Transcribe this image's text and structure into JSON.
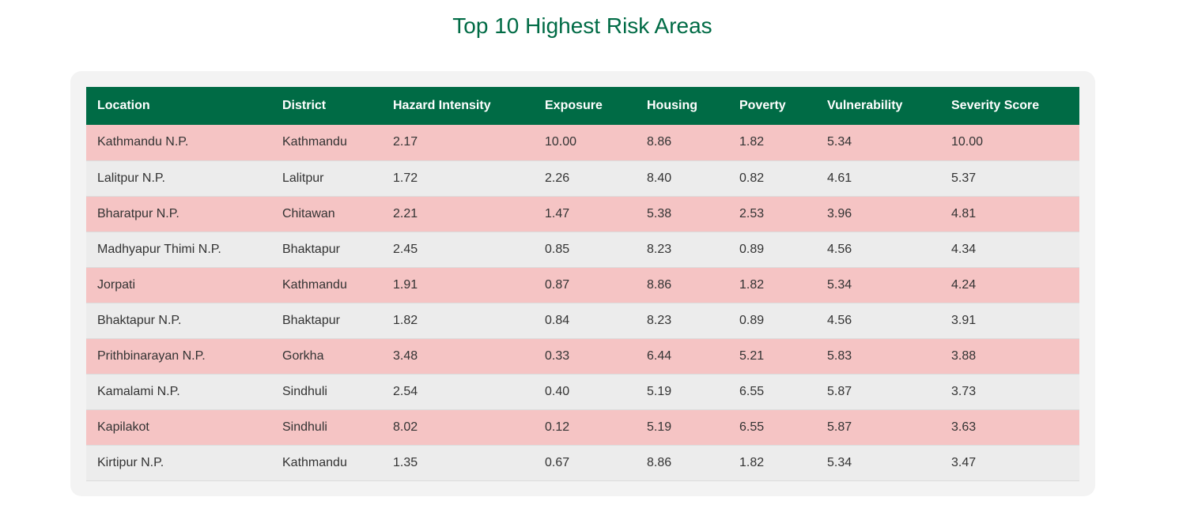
{
  "title": "Top 10 Highest Risk Areas",
  "colors": {
    "accent": "#006b45",
    "highlight_row": "#f5c4c4",
    "plain_row": "#ececec",
    "panel_bg": "#f3f3f3"
  },
  "table": {
    "columns": [
      "Location",
      "District",
      "Hazard Intensity",
      "Exposure",
      "Housing",
      "Poverty",
      "Vulnerability",
      "Severity Score"
    ],
    "rows": [
      [
        "Kathmandu N.P.",
        "Kathmandu",
        "2.17",
        "10.00",
        "8.86",
        "1.82",
        "5.34",
        "10.00"
      ],
      [
        "Lalitpur N.P.",
        "Lalitpur",
        "1.72",
        "2.26",
        "8.40",
        "0.82",
        "4.61",
        "5.37"
      ],
      [
        "Bharatpur N.P.",
        "Chitawan",
        "2.21",
        "1.47",
        "5.38",
        "2.53",
        "3.96",
        "4.81"
      ],
      [
        "Madhyapur Thimi N.P.",
        "Bhaktapur",
        "2.45",
        "0.85",
        "8.23",
        "0.89",
        "4.56",
        "4.34"
      ],
      [
        "Jorpati",
        "Kathmandu",
        "1.91",
        "0.87",
        "8.86",
        "1.82",
        "5.34",
        "4.24"
      ],
      [
        "Bhaktapur N.P.",
        "Bhaktapur",
        "1.82",
        "0.84",
        "8.23",
        "0.89",
        "4.56",
        "3.91"
      ],
      [
        "Prithbinarayan N.P.",
        "Gorkha",
        "3.48",
        "0.33",
        "6.44",
        "5.21",
        "5.83",
        "3.88"
      ],
      [
        "Kamalami N.P.",
        "Sindhuli",
        "2.54",
        "0.40",
        "5.19",
        "6.55",
        "5.87",
        "3.73"
      ],
      [
        "Kapilakot",
        "Sindhuli",
        "8.02",
        "0.12",
        "5.19",
        "6.55",
        "5.87",
        "3.63"
      ],
      [
        "Kirtipur N.P.",
        "Kathmandu",
        "1.35",
        "0.67",
        "8.86",
        "1.82",
        "5.34",
        "3.47"
      ]
    ]
  }
}
